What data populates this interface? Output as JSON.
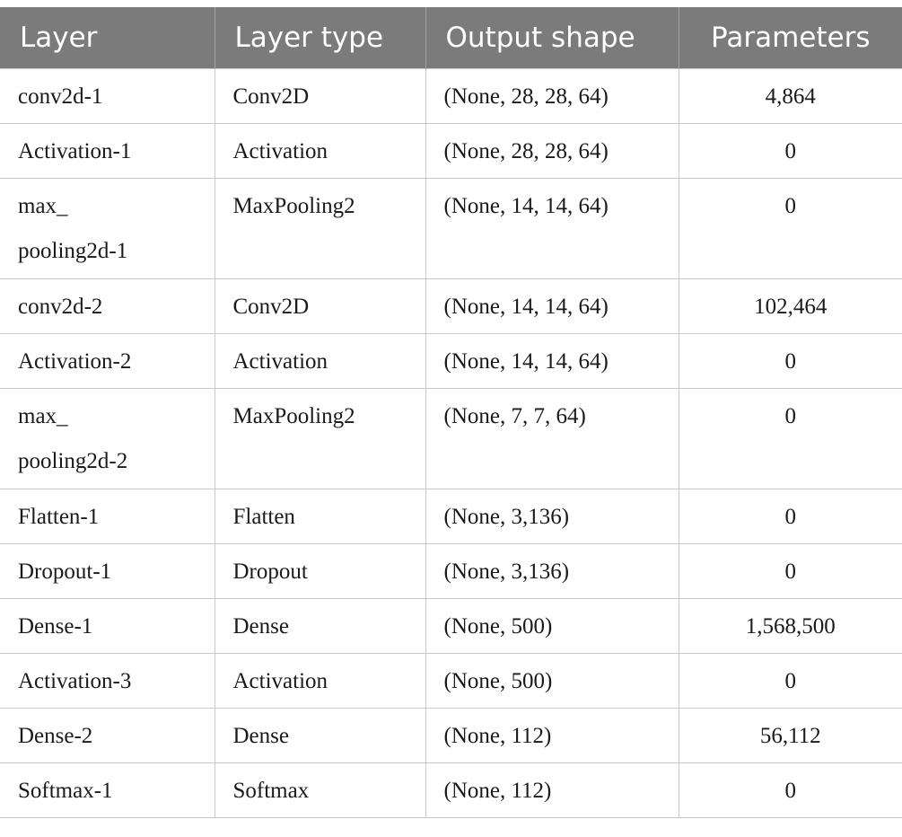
{
  "table": {
    "headers": [
      "Layer",
      "Layer type",
      "Output shape",
      "Parameters"
    ],
    "rows": [
      {
        "layer": "conv2d-1",
        "type": "Conv2D",
        "shape": "(None, 28, 28, 64)",
        "params": "4,864"
      },
      {
        "layer": "Activation-1",
        "type": "Activation",
        "shape": "(None, 28, 28, 64)",
        "params": "0"
      },
      {
        "layer_line1": "max_",
        "layer_line2": "pooling2d-1",
        "type": "MaxPooling2",
        "shape": "(None, 14, 14, 64)",
        "params": "0"
      },
      {
        "layer": "conv2d-2",
        "type": "Conv2D",
        "shape": "(None, 14, 14, 64)",
        "params": "102,464"
      },
      {
        "layer": "Activation-2",
        "type": "Activation",
        "shape": "(None, 14, 14, 64)",
        "params": "0"
      },
      {
        "layer_line1": "max_",
        "layer_line2": "pooling2d-2",
        "type": "MaxPooling2",
        "shape": "(None, 7, 7, 64)",
        "params": "0"
      },
      {
        "layer": "Flatten-1",
        "type": "Flatten",
        "shape": "(None, 3,136)",
        "params": "0"
      },
      {
        "layer": "Dropout-1",
        "type": "Dropout",
        "shape": "(None, 3,136)",
        "params": "0"
      },
      {
        "layer": "Dense-1",
        "type": "Dense",
        "shape": "(None, 500)",
        "params": "1,568,500"
      },
      {
        "layer": "Activation-3",
        "type": "Activation",
        "shape": "(None, 500)",
        "params": "0"
      },
      {
        "layer": "Dense-2",
        "type": "Dense",
        "shape": "(None, 112)",
        "params": "56,112"
      },
      {
        "layer": "Softmax-1",
        "type": "Softmax",
        "shape": "(None, 112)",
        "params": "0"
      }
    ]
  }
}
